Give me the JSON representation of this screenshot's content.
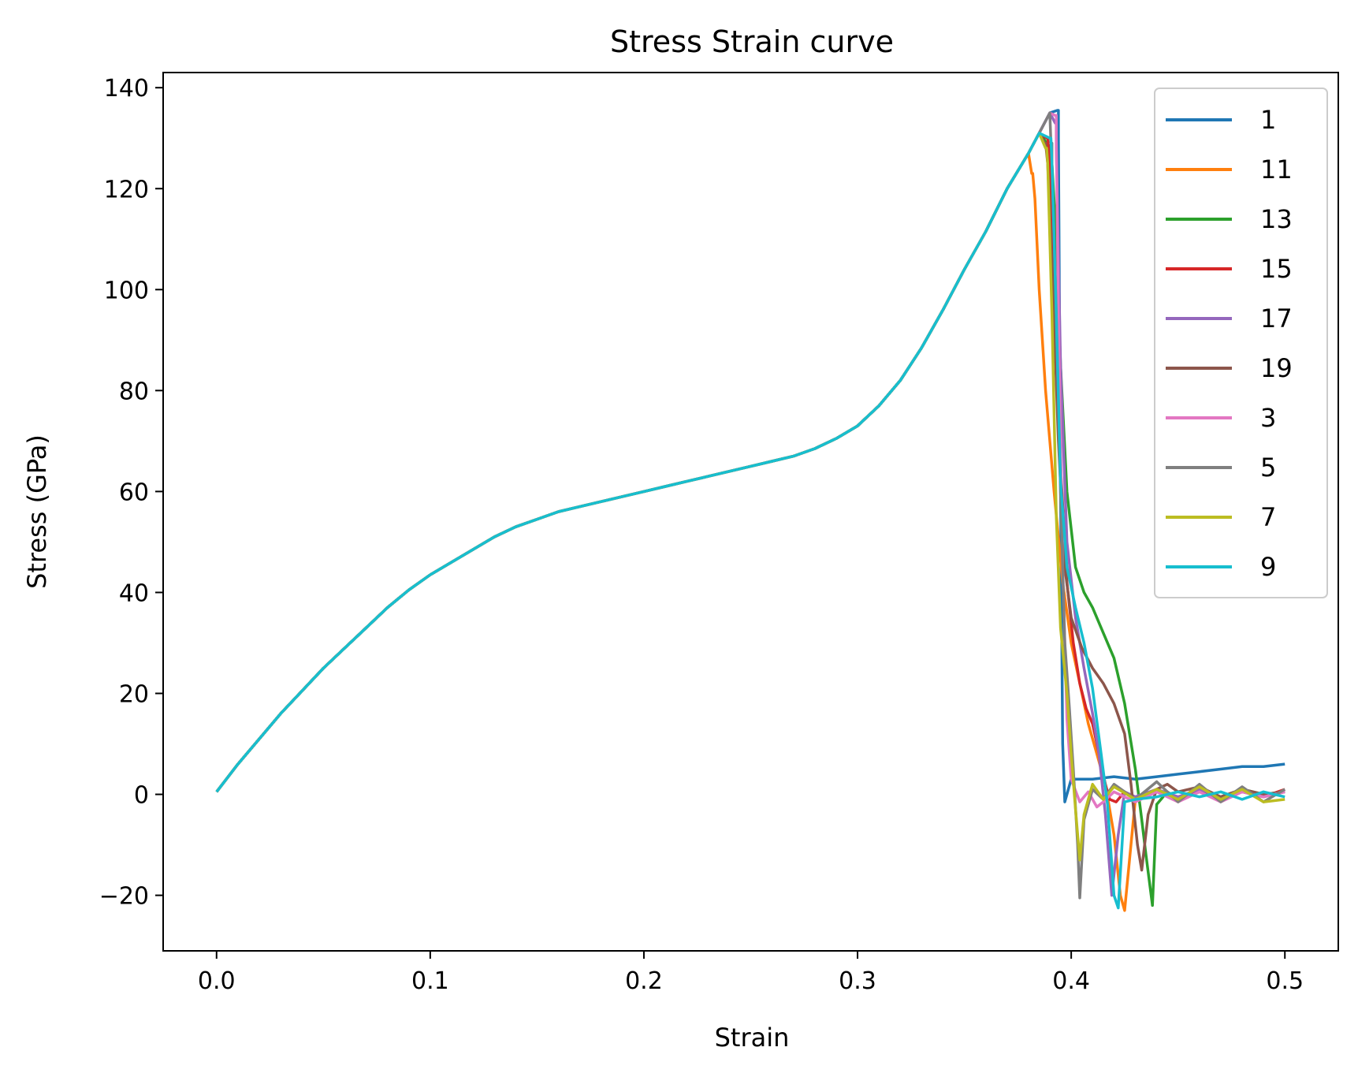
{
  "chart_data": {
    "type": "line",
    "title": "Stress Strain curve",
    "xlabel": "Strain",
    "ylabel": "Stress (GPa)",
    "xlim": [
      -0.025,
      0.525
    ],
    "ylim": [
      -31,
      143
    ],
    "xticks": [
      0.0,
      0.1,
      0.2,
      0.3,
      0.4,
      0.5
    ],
    "xtick_labels": [
      "0.0",
      "0.1",
      "0.2",
      "0.3",
      "0.4",
      "0.5"
    ],
    "yticks": [
      -20,
      0,
      20,
      40,
      60,
      80,
      100,
      120,
      140
    ],
    "ytick_labels": [
      "−20",
      "0",
      "20",
      "40",
      "60",
      "80",
      "100",
      "120",
      "140"
    ],
    "grid": false,
    "legend_position": "top-right",
    "base_curve": {
      "x": [
        0.0,
        0.01,
        0.02,
        0.03,
        0.04,
        0.05,
        0.06,
        0.07,
        0.08,
        0.09,
        0.1,
        0.11,
        0.12,
        0.13,
        0.14,
        0.15,
        0.16,
        0.17,
        0.18,
        0.19,
        0.2,
        0.21,
        0.22,
        0.23,
        0.24,
        0.25,
        0.26,
        0.27,
        0.28,
        0.29,
        0.3,
        0.31,
        0.32,
        0.33,
        0.34,
        0.35,
        0.36,
        0.37,
        0.38,
        0.385,
        0.39,
        0.395
      ],
      "y": [
        0.5,
        6,
        11,
        16,
        20.5,
        25,
        29,
        33,
        37,
        40.5,
        43.5,
        46,
        48.5,
        51,
        53,
        54.5,
        56,
        57,
        58,
        59,
        60,
        61,
        62,
        63,
        64,
        65,
        66,
        67,
        68.5,
        70.5,
        73,
        77,
        82,
        88.5,
        96,
        104,
        111.5,
        120,
        127,
        131,
        135,
        139
      ]
    },
    "series": [
      {
        "name": "1",
        "color": "#1f77b4",
        "x_break": 0.3935,
        "peak": 135.5,
        "tail": {
          "x": [
            0.394,
            0.395,
            0.396,
            0.397,
            0.4,
            0.41,
            0.42,
            0.43,
            0.44,
            0.45,
            0.46,
            0.47,
            0.48,
            0.49,
            0.5
          ],
          "y": [
            130,
            60,
            10,
            -1.5,
            3,
            3,
            3.5,
            3,
            3.5,
            4,
            4.5,
            5,
            5.5,
            5.5,
            6
          ]
        }
      },
      {
        "name": "11",
        "color": "#ff7f0e",
        "x_break": 0.3815,
        "peak": 123,
        "tail": {
          "x": [
            0.383,
            0.385,
            0.388,
            0.392,
            0.396,
            0.4,
            0.404,
            0.408,
            0.412,
            0.416,
            0.42,
            0.423,
            0.425,
            0.43,
            0.44,
            0.45,
            0.46,
            0.47,
            0.48,
            0.49,
            0.5
          ],
          "y": [
            118,
            100,
            80,
            60,
            42,
            30,
            22,
            14,
            8,
            2,
            -8,
            -20,
            -23,
            -1,
            1,
            -1,
            0.5,
            -0.5,
            1,
            -0.5,
            0.5
          ]
        }
      },
      {
        "name": "13",
        "color": "#2ca02c",
        "x_break": 0.3895,
        "peak": 128.5,
        "tail": {
          "x": [
            0.391,
            0.393,
            0.395,
            0.398,
            0.402,
            0.406,
            0.41,
            0.415,
            0.42,
            0.425,
            0.43,
            0.433,
            0.435,
            0.438,
            0.44,
            0.445,
            0.45,
            0.46,
            0.47,
            0.48,
            0.49,
            0.5
          ],
          "y": [
            125,
            110,
            85,
            60,
            45,
            40,
            37,
            32,
            27,
            18,
            5,
            -5,
            -12,
            -22,
            -2,
            0.5,
            -1,
            0.5,
            -0.5,
            1,
            0,
            0.5
          ]
        }
      },
      {
        "name": "15",
        "color": "#d62728",
        "x_break": 0.3885,
        "peak": 130,
        "tail": {
          "x": [
            0.39,
            0.392,
            0.395,
            0.398,
            0.401,
            0.404,
            0.407,
            0.41,
            0.413,
            0.416,
            0.418,
            0.421,
            0.425,
            0.43,
            0.44,
            0.45,
            0.46,
            0.47,
            0.48,
            0.49,
            0.5
          ],
          "y": [
            125,
            100,
            65,
            42,
            30,
            22,
            17,
            14,
            8,
            2,
            -1,
            -1.5,
            0.5,
            -1,
            0.5,
            -0.5,
            0.5,
            -1,
            0.5,
            -0.5,
            1
          ]
        }
      },
      {
        "name": "17",
        "color": "#9467bd",
        "x_break": 0.3925,
        "peak": 133,
        "tail": {
          "x": [
            0.393,
            0.395,
            0.398,
            0.402,
            0.406,
            0.41,
            0.413,
            0.416,
            0.419,
            0.422,
            0.425,
            0.43,
            0.44,
            0.45,
            0.46,
            0.47,
            0.48,
            0.49,
            0.5
          ],
          "y": [
            128,
            85,
            50,
            35,
            25,
            16,
            8,
            -4,
            -20,
            -8,
            0.5,
            -0.5,
            1,
            -0.5,
            1,
            -0.5,
            0.5,
            -0.5,
            0.5
          ]
        }
      },
      {
        "name": "19",
        "color": "#8c564b",
        "x_break": 0.3875,
        "peak": 129,
        "tail": {
          "x": [
            0.389,
            0.391,
            0.394,
            0.397,
            0.4,
            0.405,
            0.41,
            0.415,
            0.42,
            0.425,
            0.428,
            0.431,
            0.433,
            0.436,
            0.44,
            0.445,
            0.45,
            0.46,
            0.47,
            0.48,
            0.49,
            0.5
          ],
          "y": [
            125,
            105,
            70,
            45,
            35,
            29,
            25,
            22,
            18,
            12,
            2,
            -10,
            -15,
            -4,
            1,
            2,
            0.5,
            1.5,
            -0.5,
            1,
            0,
            0.5
          ]
        }
      },
      {
        "name": "3",
        "color": "#e377c2",
        "x_break": 0.3925,
        "peak": 134.5,
        "tail": {
          "x": [
            0.393,
            0.394,
            0.396,
            0.398,
            0.4,
            0.404,
            0.408,
            0.412,
            0.415,
            0.42,
            0.43,
            0.44,
            0.45,
            0.46,
            0.47,
            0.48,
            0.49,
            0.5
          ],
          "y": [
            130,
            95,
            45,
            15,
            3,
            -1.5,
            0.5,
            -2.5,
            -1.5,
            0.5,
            -1.5,
            0.5,
            -1.5,
            0.5,
            -1.5,
            0.5,
            -0.5,
            0.5
          ]
        }
      },
      {
        "name": "5",
        "color": "#7f7f7f",
        "x_break": 0.3905,
        "peak": 129,
        "tail": {
          "x": [
            0.391,
            0.393,
            0.395,
            0.397,
            0.399,
            0.401,
            0.403,
            0.404,
            0.406,
            0.41,
            0.415,
            0.42,
            0.43,
            0.44,
            0.45,
            0.46,
            0.47,
            0.48,
            0.49,
            0.5
          ],
          "y": [
            125,
            95,
            60,
            30,
            18,
            5,
            -10,
            -20.5,
            -5,
            1,
            -1,
            2,
            -1,
            2.5,
            -1.5,
            2,
            -1.5,
            1.5,
            -1.5,
            1
          ]
        }
      },
      {
        "name": "7",
        "color": "#bcbd22",
        "x_break": 0.388,
        "peak": 128,
        "tail": {
          "x": [
            0.389,
            0.391,
            0.393,
            0.395,
            0.398,
            0.4,
            0.402,
            0.404,
            0.406,
            0.41,
            0.415,
            0.42,
            0.43,
            0.44,
            0.45,
            0.46,
            0.47,
            0.48,
            0.49,
            0.5
          ],
          "y": [
            125,
            95,
            55,
            33,
            20,
            8,
            -3,
            -13,
            -4,
            2,
            -1,
            1.5,
            -1,
            1,
            -1,
            1.5,
            -1,
            1,
            -1.5,
            -1
          ]
        }
      },
      {
        "name": "9",
        "color": "#17becf",
        "x_break": 0.39,
        "peak": 130,
        "tail": {
          "x": [
            0.391,
            0.393,
            0.395,
            0.398,
            0.402,
            0.406,
            0.41,
            0.414,
            0.417,
            0.42,
            0.422,
            0.425,
            0.43,
            0.44,
            0.45,
            0.46,
            0.47,
            0.48,
            0.49,
            0.5
          ],
          "y": [
            125,
            95,
            62,
            45,
            37,
            30,
            21,
            8,
            -2,
            -20,
            -22.5,
            -1.5,
            -1,
            -0.5,
            0.5,
            -0.5,
            0.5,
            -1,
            0.5,
            -0.5
          ]
        }
      }
    ]
  }
}
